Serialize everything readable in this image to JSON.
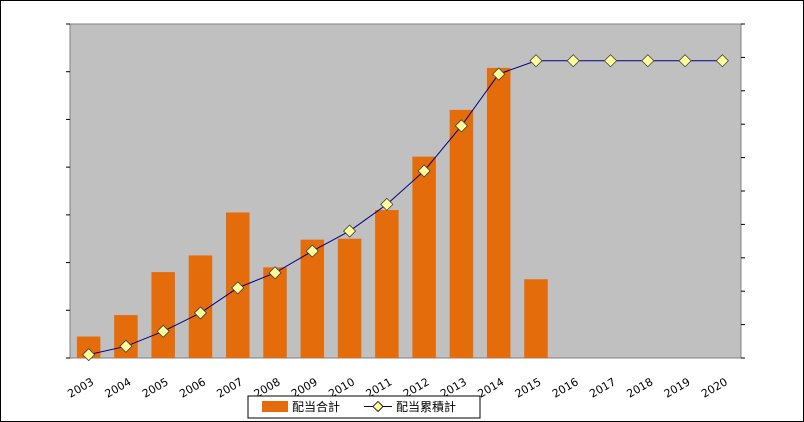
{
  "chart_data": {
    "type": "bar+line",
    "title": "",
    "xlabel": "",
    "ylabel": "",
    "categories": [
      "2003",
      "2004",
      "2005",
      "2006",
      "2007",
      "2008",
      "2009",
      "2010",
      "2011",
      "2012",
      "2013",
      "2014",
      "2015",
      "2016",
      "2017",
      "2018",
      "2019",
      "2020"
    ],
    "ylim_left": [
      0,
      7
    ],
    "ylim_right": [
      0,
      10
    ],
    "grid": false,
    "legend_position": "bottom",
    "series": [
      {
        "name": "配当合計",
        "type": "bar",
        "axis": "left",
        "color": "#E46C0A",
        "values": [
          0.45,
          0.9,
          1.8,
          2.15,
          3.05,
          1.9,
          2.48,
          2.5,
          3.1,
          4.22,
          5.2,
          6.08,
          1.65,
          null,
          null,
          null,
          null,
          null
        ]
      },
      {
        "name": "配当累積計",
        "type": "line",
        "axis": "right",
        "color": "#000080",
        "marker_color": "#FFFF99",
        "values": [
          0.1,
          0.35,
          0.8,
          1.35,
          2.1,
          2.55,
          3.2,
          3.8,
          4.6,
          5.6,
          6.95,
          8.5,
          8.9,
          8.9,
          8.9,
          8.9,
          8.9,
          8.9
        ]
      }
    ]
  }
}
